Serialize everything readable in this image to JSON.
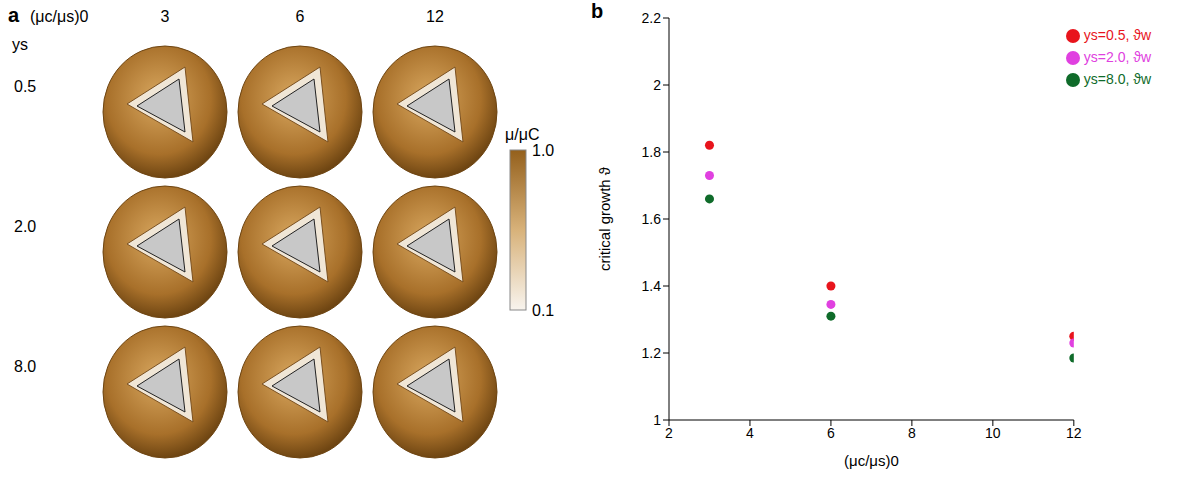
{
  "panel_a": {
    "label": "a",
    "column_title": "(μc/μs)0",
    "columns": [
      "3",
      "6",
      "12"
    ],
    "row_title": "ys",
    "rows": [
      "0.5",
      "2.0",
      "8.0"
    ],
    "colorbar": {
      "title": "μ/μC",
      "range": [
        0.1,
        1.0
      ],
      "log": true,
      "ticks": [
        {
          "value": 1.0,
          "label": "1.0"
        },
        {
          "value": 0.1,
          "label": "0.1"
        }
      ]
    }
  },
  "chart_data": {
    "type": "scatter",
    "panel": "b",
    "x_label": "(μc/μs)0",
    "y_label": "critical growth ϑ",
    "xlim": [
      2,
      12
    ],
    "xticks": [
      2,
      4,
      6,
      8,
      10,
      12
    ],
    "ylim": [
      1,
      2.2
    ],
    "yticks": [
      1,
      1.2,
      1.4,
      1.6,
      1.8,
      2,
      2.2
    ],
    "grid": false,
    "legend": "top-right",
    "marker": "circle",
    "series": [
      {
        "name": "ys=0.5, ϑw",
        "color": "#e8141c",
        "x": [
          3,
          6,
          12
        ],
        "values": [
          1.82,
          1.4,
          1.25
        ]
      },
      {
        "name": "ys=2.0, ϑw",
        "color": "#e040e0",
        "x": [
          3,
          6,
          12
        ],
        "values": [
          1.73,
          1.345,
          1.23
        ]
      },
      {
        "name": "ys=8.0, ϑw",
        "color": "#0f6b2a",
        "x": [
          3,
          6,
          12
        ],
        "values": [
          1.66,
          1.31,
          1.185
        ]
      }
    ]
  }
}
